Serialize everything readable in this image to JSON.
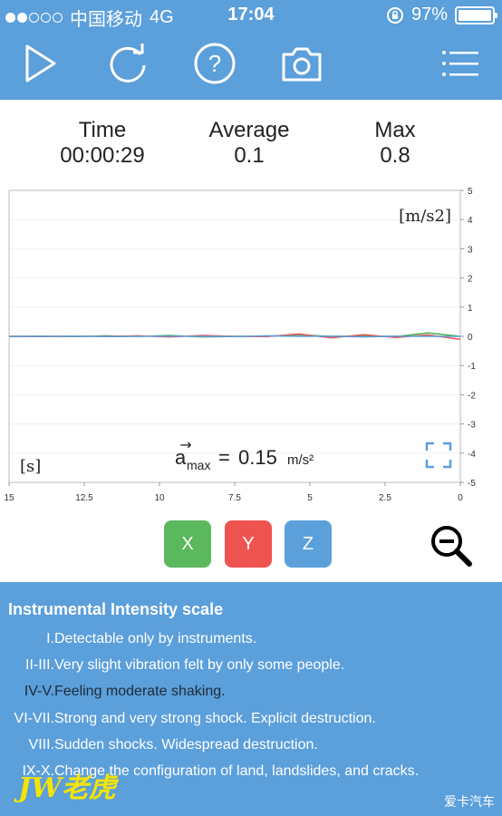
{
  "status": {
    "carrier": "中国移动",
    "network": "4G",
    "time": "17:04",
    "battery": "97%"
  },
  "toolbar": {
    "icons": [
      "play-icon",
      "refresh-icon",
      "help-icon",
      "camera-icon",
      "menu-icon"
    ]
  },
  "stats": {
    "time_label": "Time",
    "time_value": "00:00:29",
    "avg_label": "Average",
    "avg_value": "0.1",
    "max_label": "Max",
    "max_value": "0.8"
  },
  "chart_data": {
    "type": "line",
    "xlabel": "[s]",
    "ylabel": "[m/s2]",
    "x_ticks": [
      "15",
      "12.5",
      "10",
      "7.5",
      "5",
      "2.5",
      "0"
    ],
    "y_ticks": [
      "5",
      "4",
      "3",
      "2",
      "1",
      "0",
      "-1",
      "-2",
      "-3",
      "-4",
      "-5"
    ],
    "xlim": [
      15,
      0
    ],
    "ylim": [
      -5,
      5
    ],
    "annotation_symbol": "a",
    "annotation_sub": "max",
    "annotation_eq": "=",
    "annotation_value": "0.15",
    "annotation_unit": "m/s²",
    "series": [
      {
        "color": "#4caf50",
        "values": [
          0.0,
          0.01,
          -0.01,
          0.02,
          0.0,
          0.03,
          -0.02,
          0.0,
          0.01,
          0.05,
          0.0,
          0.02,
          -0.01,
          0.12,
          0.0
        ]
      },
      {
        "color": "#ef5350",
        "values": [
          0.0,
          -0.01,
          0.01,
          0.0,
          0.02,
          -0.02,
          0.03,
          0.0,
          -0.01,
          0.08,
          -0.05,
          0.06,
          -0.04,
          0.05,
          -0.1
        ]
      },
      {
        "color": "#5b9fdb",
        "values": [
          0.0,
          0.0,
          0.01,
          -0.01,
          0.0,
          0.01,
          0.0,
          -0.01,
          0.02,
          0.0,
          0.01,
          -0.02,
          0.01,
          0.0,
          0.0
        ]
      }
    ]
  },
  "axis_buttons": {
    "x": {
      "label": "X",
      "color": "#5cb85c"
    },
    "y": {
      "label": "Y",
      "color": "#ef5350"
    },
    "z": {
      "label": "Z",
      "color": "#5b9fdb"
    }
  },
  "info": {
    "title": "Instrumental Intensity scale",
    "rows": [
      {
        "num": "I.",
        "desc": "Detectable only by instruments."
      },
      {
        "num": "II-III.",
        "desc": "Very slight vibration felt by only some people."
      },
      {
        "num": "IV-V.",
        "desc": "Feeling moderate shaking."
      },
      {
        "num": "VI-VII.",
        "desc": "Strong and very strong shock. Explicit destruction."
      },
      {
        "num": "VIII.",
        "desc": "Sudden shocks. Widespread destruction."
      },
      {
        "num": "IX-X.",
        "desc": "Change the configuration of land, landslides, and cracks."
      }
    ]
  },
  "watermark": "JW老虎",
  "corner_mark": "爱卡汽车"
}
